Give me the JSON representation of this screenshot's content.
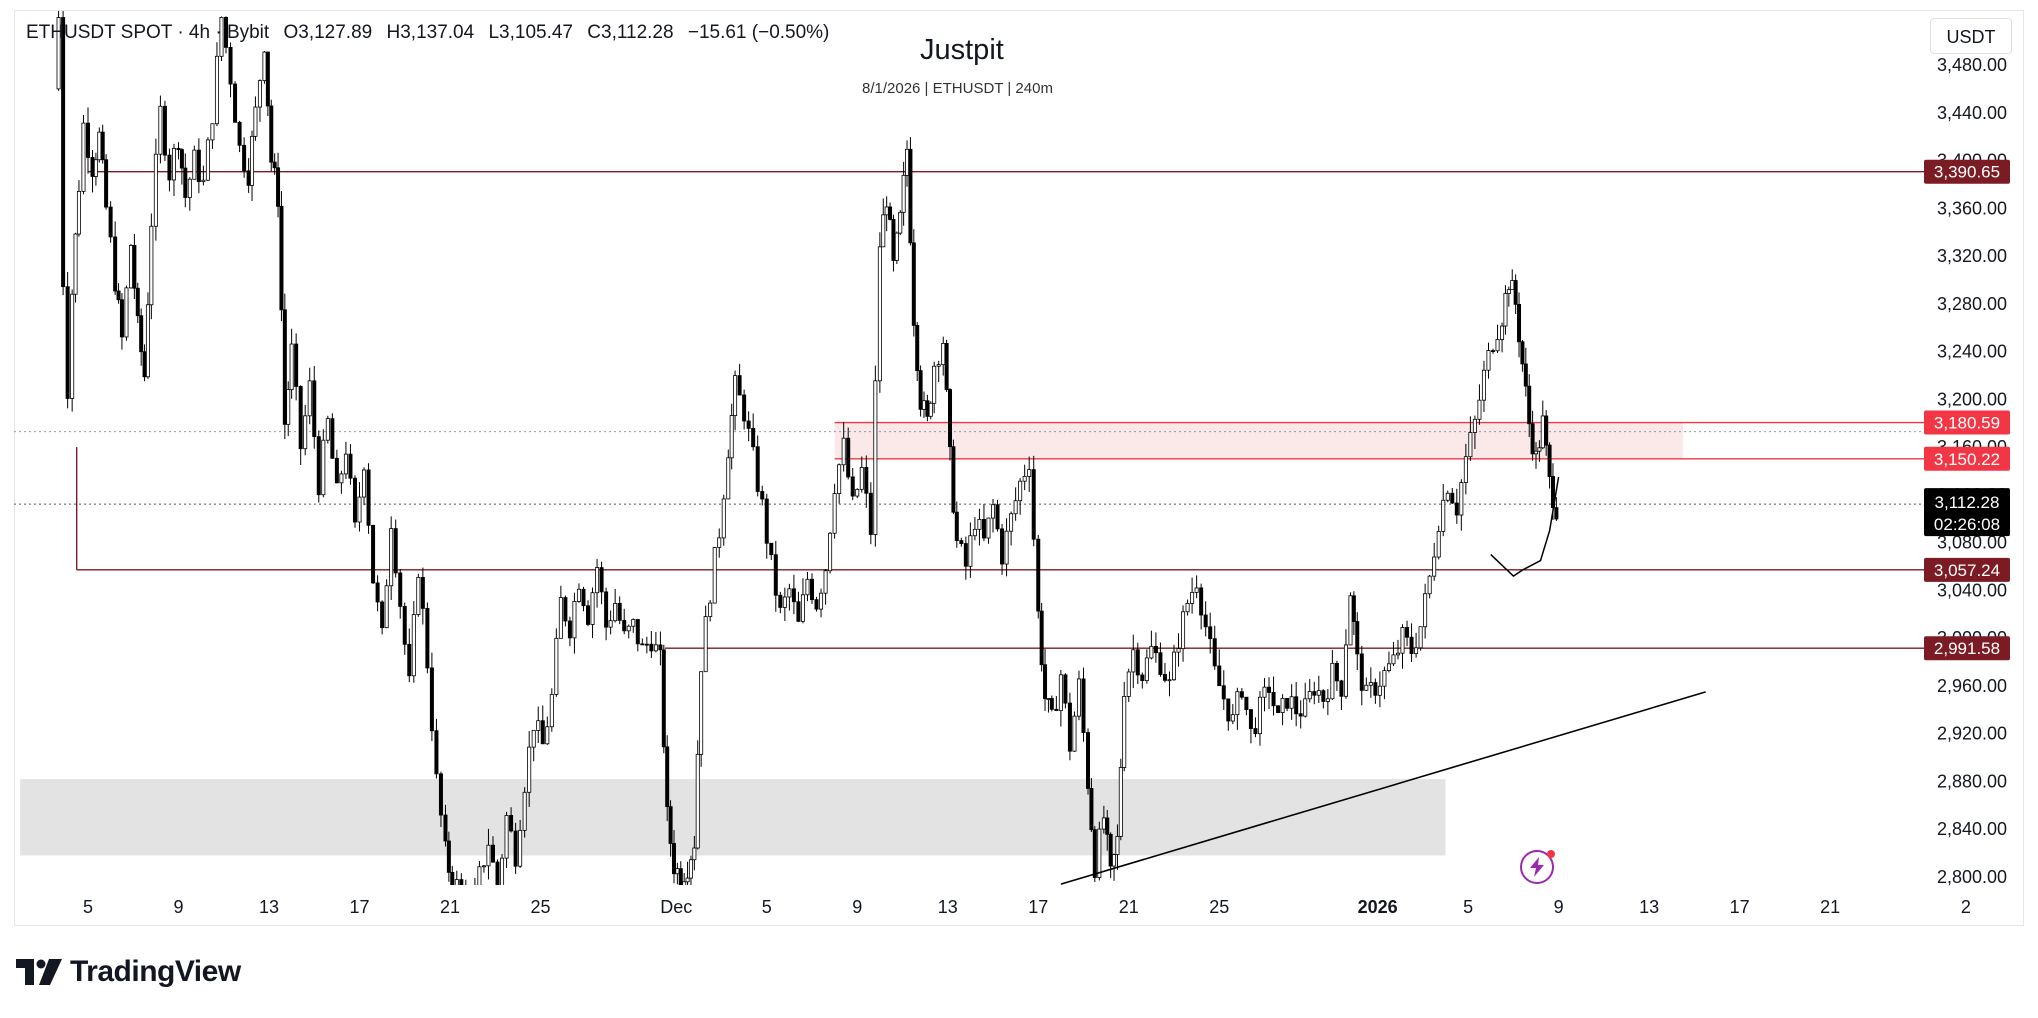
{
  "header": {
    "symbol": "ETHUSDT SPOT · 4h · Bybit",
    "open": "O3,127.89",
    "high": "H3,137.04",
    "low": "L3,105.47",
    "close": "C3,112.28",
    "change": "−15.61 (−0.50%)"
  },
  "currency": "USDT",
  "brand": "TradingView",
  "icons": {
    "brand_logo": "tradingview-logo-icon",
    "alert": "lightning-icon"
  },
  "colors": {
    "candle": "#000000",
    "level_line": "#7b1c24",
    "level_label_bg": "#7b1c24",
    "zone_line": "#f23645",
    "zone_label_bg": "#f23645",
    "zone_fill": "#fbe9ea",
    "demand_fill": "#e3e3e3",
    "price_label_bg": "#000000",
    "trendline": "#000000"
  },
  "chart_data": {
    "type": "candlestick",
    "title": "Justpit",
    "subtitle": "8/1/2026 | ETHUSDT | 240m",
    "y_axis": {
      "ticks": [
        "3,480.00",
        "3,440.00",
        "3,400.00",
        "3,360.00",
        "3,320.00",
        "3,280.00",
        "3,240.00",
        "3,200.00",
        "3,160.00",
        "3,120.00",
        "3,080.00",
        "3,040.00",
        "3,000.00",
        "2,960.00",
        "2,920.00",
        "2,880.00",
        "2,840.00",
        "2,800.00"
      ],
      "tick_values": [
        3480,
        3440,
        3400,
        3360,
        3320,
        3280,
        3240,
        3200,
        3160,
        3120,
        3080,
        3040,
        3000,
        2960,
        2920,
        2880,
        2840,
        2800
      ],
      "range": [
        2795,
        3500
      ]
    },
    "x_axis": {
      "labels": [
        "5",
        "9",
        "13",
        "17",
        "21",
        "25",
        "Dec",
        "5",
        "9",
        "13",
        "17",
        "21",
        "25",
        "2026",
        "5",
        "9",
        "13",
        "17",
        "21",
        "2"
      ],
      "label_days": [
        0,
        4,
        8,
        12,
        16,
        20,
        26,
        30,
        34,
        38,
        42,
        46,
        50,
        57,
        61,
        65,
        69,
        73,
        77,
        83
      ]
    },
    "levels": [
      {
        "price": 3390.65,
        "label": "3,390.65",
        "kind": "resistance",
        "from_day": 0
      },
      {
        "price": 3180.59,
        "label": "3,180.59",
        "kind": "zone-top",
        "from_day": 33
      },
      {
        "price": 3150.22,
        "label": "3,150.22",
        "kind": "zone-bottom",
        "from_day": 33
      },
      {
        "price": 3057.24,
        "label": "3,057.24",
        "kind": "support",
        "from_day": -0.5
      },
      {
        "price": 2991.58,
        "label": "2,991.58",
        "kind": "support",
        "from_day": 25.5
      }
    ],
    "current_price": {
      "price": 3112.28,
      "label": "3,112.28",
      "countdown": "02:26:08"
    },
    "zones": [
      {
        "top": 3180.59,
        "bottom": 3150.22,
        "from_day": 33,
        "to_day": 70.5,
        "kind": "supply"
      },
      {
        "top": 2882,
        "bottom": 2818,
        "from_day": -3,
        "to_day": 60,
        "kind": "demand"
      }
    ],
    "trendline": {
      "from": {
        "day": 43,
        "price": 2794
      },
      "to": {
        "day": 71.5,
        "price": 2955
      }
    },
    "projection": [
      [
        62,
        3070
      ],
      [
        63,
        3052
      ],
      [
        63.4,
        3057
      ],
      [
        64.2,
        3065
      ],
      [
        64.6,
        3090
      ],
      [
        65,
        3135
      ]
    ],
    "series": [
      {
        "day": -1.5,
        "price": 3460
      },
      {
        "day": -1.3,
        "price": 3520
      },
      {
        "day": -1.1,
        "price": 3300
      },
      {
        "day": -0.9,
        "price": 3210
      },
      {
        "day": -0.7,
        "price": 3290
      },
      {
        "day": -0.4,
        "price": 3380
      },
      {
        "day": -0.2,
        "price": 3430
      },
      {
        "day": 0.2,
        "price": 3395
      },
      {
        "day": 0.5,
        "price": 3420
      },
      {
        "day": 0.8,
        "price": 3360
      },
      {
        "day": 1.2,
        "price": 3300
      },
      {
        "day": 1.5,
        "price": 3250
      },
      {
        "day": 1.9,
        "price": 3330
      },
      {
        "day": 2.2,
        "price": 3260
      },
      {
        "day": 2.5,
        "price": 3220
      },
      {
        "day": 2.8,
        "price": 3350
      },
      {
        "day": 3.2,
        "price": 3440
      },
      {
        "day": 3.6,
        "price": 3390
      },
      {
        "day": 4,
        "price": 3420
      },
      {
        "day": 4.3,
        "price": 3370
      },
      {
        "day": 4.7,
        "price": 3400
      },
      {
        "day": 5.1,
        "price": 3380
      },
      {
        "day": 5.5,
        "price": 3440
      },
      {
        "day": 5.9,
        "price": 3520
      },
      {
        "day": 6.3,
        "price": 3470
      },
      {
        "day": 6.7,
        "price": 3410
      },
      {
        "day": 7.1,
        "price": 3390
      },
      {
        "day": 7.4,
        "price": 3440
      },
      {
        "day": 7.8,
        "price": 3500
      },
      {
        "day": 8.1,
        "price": 3400
      },
      {
        "day": 8.4,
        "price": 3370
      },
      {
        "day": 8.7,
        "price": 3180
      },
      {
        "day": 9,
        "price": 3240
      },
      {
        "day": 9.4,
        "price": 3160
      },
      {
        "day": 9.8,
        "price": 3210
      },
      {
        "day": 10.2,
        "price": 3130
      },
      {
        "day": 10.6,
        "price": 3180
      },
      {
        "day": 11,
        "price": 3120
      },
      {
        "day": 11.4,
        "price": 3160
      },
      {
        "day": 11.8,
        "price": 3090
      },
      {
        "day": 12.2,
        "price": 3150
      },
      {
        "day": 12.6,
        "price": 3050
      },
      {
        "day": 13,
        "price": 3000
      },
      {
        "day": 13.4,
        "price": 3100
      },
      {
        "day": 13.8,
        "price": 3030
      },
      {
        "day": 14.2,
        "price": 2960
      },
      {
        "day": 14.6,
        "price": 3060
      },
      {
        "day": 15,
        "price": 2980
      },
      {
        "day": 15.4,
        "price": 2880
      },
      {
        "day": 15.8,
        "price": 2820
      },
      {
        "day": 16.1,
        "price": 2795
      },
      {
        "day": 16.5,
        "price": 2790
      },
      {
        "day": 16.9,
        "price": 2770
      },
      {
        "day": 17.3,
        "price": 2800
      },
      {
        "day": 17.7,
        "price": 2830
      },
      {
        "day": 18.1,
        "price": 2790
      },
      {
        "day": 18.5,
        "price": 2850
      },
      {
        "day": 18.9,
        "price": 2820
      },
      {
        "day": 19.3,
        "price": 2880
      },
      {
        "day": 19.7,
        "price": 2930
      },
      {
        "day": 20.1,
        "price": 2910
      },
      {
        "day": 20.5,
        "price": 2950
      },
      {
        "day": 20.9,
        "price": 3030
      },
      {
        "day": 21.3,
        "price": 3010
      },
      {
        "day": 21.7,
        "price": 3050
      },
      {
        "day": 22.1,
        "price": 3020
      },
      {
        "day": 22.5,
        "price": 3060
      },
      {
        "day": 22.9,
        "price": 3010
      },
      {
        "day": 23.3,
        "price": 3030
      },
      {
        "day": 23.7,
        "price": 3000
      },
      {
        "day": 24.1,
        "price": 3010
      },
      {
        "day": 24.5,
        "price": 2990
      },
      {
        "day": 24.9,
        "price": 3000
      },
      {
        "day": 25.3,
        "price": 2980
      },
      {
        "day": 25.6,
        "price": 2850
      },
      {
        "day": 25.9,
        "price": 2810
      },
      {
        "day": 26.2,
        "price": 2800
      },
      {
        "day": 26.5,
        "price": 2810
      },
      {
        "day": 26.8,
        "price": 2830
      },
      {
        "day": 27.1,
        "price": 2980
      },
      {
        "day": 27.5,
        "price": 3040
      },
      {
        "day": 27.9,
        "price": 3090
      },
      {
        "day": 28.3,
        "price": 3160
      },
      {
        "day": 28.6,
        "price": 3210
      },
      {
        "day": 29,
        "price": 3190
      },
      {
        "day": 29.4,
        "price": 3150
      },
      {
        "day": 29.8,
        "price": 3110
      },
      {
        "day": 30.2,
        "price": 3060
      },
      {
        "day": 30.6,
        "price": 3020
      },
      {
        "day": 31,
        "price": 3040
      },
      {
        "day": 31.4,
        "price": 3010
      },
      {
        "day": 31.8,
        "price": 3050
      },
      {
        "day": 32.2,
        "price": 3030
      },
      {
        "day": 32.6,
        "price": 3060
      },
      {
        "day": 33,
        "price": 3130
      },
      {
        "day": 33.4,
        "price": 3160
      },
      {
        "day": 33.8,
        "price": 3110
      },
      {
        "day": 34.2,
        "price": 3140
      },
      {
        "day": 34.6,
        "price": 3090
      },
      {
        "day": 35,
        "price": 3330
      },
      {
        "day": 35.3,
        "price": 3370
      },
      {
        "day": 35.6,
        "price": 3310
      },
      {
        "day": 35.9,
        "price": 3350
      },
      {
        "day": 36.2,
        "price": 3410
      },
      {
        "day": 36.5,
        "price": 3270
      },
      {
        "day": 36.8,
        "price": 3200
      },
      {
        "day": 37.1,
        "price": 3180
      },
      {
        "day": 37.4,
        "price": 3230
      },
      {
        "day": 37.8,
        "price": 3250
      },
      {
        "day": 38.1,
        "price": 3150
      },
      {
        "day": 38.4,
        "price": 3080
      },
      {
        "day": 38.8,
        "price": 3060
      },
      {
        "day": 39.2,
        "price": 3100
      },
      {
        "day": 39.6,
        "price": 3080
      },
      {
        "day": 40,
        "price": 3110
      },
      {
        "day": 40.4,
        "price": 3070
      },
      {
        "day": 40.8,
        "price": 3100
      },
      {
        "day": 41.2,
        "price": 3130
      },
      {
        "day": 41.6,
        "price": 3150
      },
      {
        "day": 42,
        "price": 3020
      },
      {
        "day": 42.3,
        "price": 2950
      },
      {
        "day": 42.6,
        "price": 2930
      },
      {
        "day": 43,
        "price": 2970
      },
      {
        "day": 43.4,
        "price": 2910
      },
      {
        "day": 43.8,
        "price": 2960
      },
      {
        "day": 44.2,
        "price": 2880
      },
      {
        "day": 44.5,
        "price": 2810
      },
      {
        "day": 44.9,
        "price": 2850
      },
      {
        "day": 45.2,
        "price": 2800
      },
      {
        "day": 45.5,
        "price": 2830
      },
      {
        "day": 45.8,
        "price": 2960
      },
      {
        "day": 46.2,
        "price": 2990
      },
      {
        "day": 46.6,
        "price": 2970
      },
      {
        "day": 47,
        "price": 2990
      },
      {
        "day": 47.4,
        "price": 2980
      },
      {
        "day": 47.8,
        "price": 2960
      },
      {
        "day": 48.2,
        "price": 3000
      },
      {
        "day": 48.6,
        "price": 3030
      },
      {
        "day": 49,
        "price": 3050
      },
      {
        "day": 49.4,
        "price": 3010
      },
      {
        "day": 49.8,
        "price": 2970
      },
      {
        "day": 50.2,
        "price": 2950
      },
      {
        "day": 50.6,
        "price": 2930
      },
      {
        "day": 51,
        "price": 2960
      },
      {
        "day": 51.4,
        "price": 2920
      },
      {
        "day": 51.8,
        "price": 2940
      },
      {
        "day": 52.2,
        "price": 2960
      },
      {
        "day": 52.6,
        "price": 2930
      },
      {
        "day": 53,
        "price": 2950
      },
      {
        "day": 53.4,
        "price": 2940
      },
      {
        "day": 53.8,
        "price": 2940
      },
      {
        "day": 54.2,
        "price": 2960
      },
      {
        "day": 54.6,
        "price": 2950
      },
      {
        "day": 55,
        "price": 2970
      },
      {
        "day": 55.4,
        "price": 2960
      },
      {
        "day": 55.8,
        "price": 3040
      },
      {
        "day": 56.1,
        "price": 2980
      },
      {
        "day": 56.5,
        "price": 2950
      },
      {
        "day": 56.9,
        "price": 2960
      },
      {
        "day": 57.3,
        "price": 2970
      },
      {
        "day": 57.7,
        "price": 2980
      },
      {
        "day": 58.1,
        "price": 3000
      },
      {
        "day": 58.5,
        "price": 2990
      },
      {
        "day": 58.9,
        "price": 3010
      },
      {
        "day": 59.3,
        "price": 3050
      },
      {
        "day": 59.7,
        "price": 3100
      },
      {
        "day": 60.1,
        "price": 3130
      },
      {
        "day": 60.5,
        "price": 3110
      },
      {
        "day": 60.9,
        "price": 3150
      },
      {
        "day": 61.3,
        "price": 3180
      },
      {
        "day": 61.7,
        "price": 3220
      },
      {
        "day": 62.1,
        "price": 3250
      },
      {
        "day": 62.5,
        "price": 3270
      },
      {
        "day": 62.8,
        "price": 3300
      },
      {
        "day": 63.1,
        "price": 3280
      },
      {
        "day": 63.4,
        "price": 3230
      },
      {
        "day": 63.7,
        "price": 3180
      },
      {
        "day": 64,
        "price": 3150
      },
      {
        "day": 64.3,
        "price": 3180
      },
      {
        "day": 64.6,
        "price": 3130
      },
      {
        "day": 64.9,
        "price": 3110
      }
    ]
  }
}
